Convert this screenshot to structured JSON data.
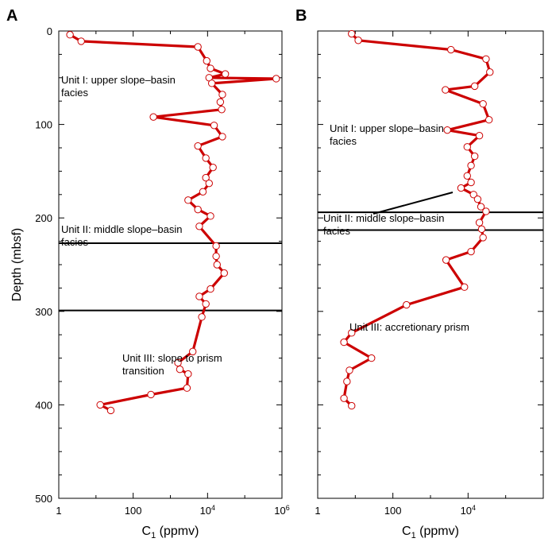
{
  "chart_data": [
    {
      "panel_label": "A",
      "type": "line",
      "xlabel_main": "C",
      "xlabel_sub": "1",
      "xlabel_unit": "(ppmv)",
      "ylabel": "Depth (mbsf)",
      "x_scale": "log",
      "xlim": [
        1,
        1000000
      ],
      "ylim": [
        0,
        500
      ],
      "y_inverted": true,
      "x_ticks": [
        {
          "value": 1,
          "label": "1",
          "sup": ""
        },
        {
          "value": 100,
          "label": "100",
          "sup": ""
        },
        {
          "value": 10000,
          "label": "10",
          "sup": "4"
        },
        {
          "value": 1000000,
          "label": "10",
          "sup": "6"
        }
      ],
      "y_ticks": [
        {
          "value": 0,
          "label": "0"
        },
        {
          "value": 100,
          "label": "100"
        },
        {
          "value": 200,
          "label": "200"
        },
        {
          "value": 300,
          "label": "300"
        },
        {
          "value": 400,
          "label": "400"
        },
        {
          "value": 500,
          "label": "500"
        }
      ],
      "series": [
        {
          "color": "#cc0000",
          "points": [
            {
              "x": 2,
              "y": 4
            },
            {
              "x": 4,
              "y": 11
            },
            {
              "x": 5500,
              "y": 17
            },
            {
              "x": 9500,
              "y": 32
            },
            {
              "x": 12000,
              "y": 40
            },
            {
              "x": 30000,
              "y": 46
            },
            {
              "x": 11000,
              "y": 50
            },
            {
              "x": 700000,
              "y": 51
            },
            {
              "x": 13000,
              "y": 56
            },
            {
              "x": 25000,
              "y": 68
            },
            {
              "x": 22000,
              "y": 76
            },
            {
              "x": 24000,
              "y": 84
            },
            {
              "x": 350,
              "y": 92
            },
            {
              "x": 15000,
              "y": 101
            },
            {
              "x": 25000,
              "y": 113
            },
            {
              "x": 5500,
              "y": 123
            },
            {
              "x": 9000,
              "y": 136
            },
            {
              "x": 14000,
              "y": 146
            },
            {
              "x": 9000,
              "y": 157
            },
            {
              "x": 11000,
              "y": 163
            },
            {
              "x": 7500,
              "y": 172
            },
            {
              "x": 3000,
              "y": 181
            },
            {
              "x": 5500,
              "y": 191
            },
            {
              "x": 12000,
              "y": 198
            },
            {
              "x": 6000,
              "y": 209
            },
            {
              "x": 17000,
              "y": 230
            },
            {
              "x": 17000,
              "y": 241
            },
            {
              "x": 18000,
              "y": 250
            },
            {
              "x": 28000,
              "y": 259
            },
            {
              "x": 12000,
              "y": 276
            },
            {
              "x": 6000,
              "y": 284
            },
            {
              "x": 9000,
              "y": 292
            },
            {
              "x": 7000,
              "y": 306
            },
            {
              "x": 4000,
              "y": 343
            },
            {
              "x": 1600,
              "y": 355
            },
            {
              "x": 1800,
              "y": 362
            },
            {
              "x": 3000,
              "y": 367
            },
            {
              "x": 2800,
              "y": 382
            },
            {
              "x": 300,
              "y": 389
            },
            {
              "x": 13,
              "y": 400
            },
            {
              "x": 25,
              "y": 406
            }
          ]
        }
      ],
      "boundaries": [
        {
          "depth": 227
        },
        {
          "depth": 299
        }
      ],
      "annotations": [
        {
          "text": [
            "Unit I: upper slope–basin",
            "facies"
          ],
          "x": 3,
          "y": 66
        },
        {
          "text": [
            "Unit II: middle slope–basin",
            "facies"
          ],
          "x": 3,
          "y": 254
        },
        {
          "text": [
            "Unit III: slope to prism",
            "transition"
          ],
          "x": 80,
          "y": 416
        }
      ]
    },
    {
      "panel_label": "B",
      "type": "line",
      "xlabel_main": "C",
      "xlabel_sub": "1",
      "xlabel_unit": "(ppmv)",
      "ylabel": "",
      "x_scale": "log",
      "xlim": [
        1,
        1000000
      ],
      "ylim": [
        0,
        500
      ],
      "y_inverted": true,
      "x_ticks": [
        {
          "value": 1,
          "label": "1",
          "sup": ""
        },
        {
          "value": 100,
          "label": "100",
          "sup": ""
        },
        {
          "value": 10000,
          "label": "10",
          "sup": "4"
        }
      ],
      "y_ticks": [],
      "series": [
        {
          "color": "#cc0000",
          "points": [
            {
              "x": 8,
              "y": 3
            },
            {
              "x": 12,
              "y": 10
            },
            {
              "x": 3500,
              "y": 20
            },
            {
              "x": 30000,
              "y": 30
            },
            {
              "x": 38000,
              "y": 44
            },
            {
              "x": 15000,
              "y": 59
            },
            {
              "x": 2500,
              "y": 63
            },
            {
              "x": 25000,
              "y": 78
            },
            {
              "x": 36000,
              "y": 95
            },
            {
              "x": 2800,
              "y": 106
            },
            {
              "x": 20000,
              "y": 112
            },
            {
              "x": 9500,
              "y": 124
            },
            {
              "x": 15000,
              "y": 134
            },
            {
              "x": 12000,
              "y": 144
            },
            {
              "x": 9500,
              "y": 155
            },
            {
              "x": 12000,
              "y": 162
            },
            {
              "x": 6500,
              "y": 168
            },
            {
              "x": 14000,
              "y": 175
            },
            {
              "x": 18000,
              "y": 180
            },
            {
              "x": 22000,
              "y": 188
            },
            {
              "x": 30000,
              "y": 193
            },
            {
              "x": 20000,
              "y": 205
            },
            {
              "x": 23000,
              "y": 212
            },
            {
              "x": 25000,
              "y": 221
            },
            {
              "x": 12000,
              "y": 236
            },
            {
              "x": 2600,
              "y": 245
            },
            {
              "x": 8000,
              "y": 274
            },
            {
              "x": 230,
              "y": 293
            },
            {
              "x": 8,
              "y": 323
            },
            {
              "x": 5,
              "y": 333
            },
            {
              "x": 27,
              "y": 350
            },
            {
              "x": 7,
              "y": 363
            },
            {
              "x": 6,
              "y": 375
            },
            {
              "x": 5,
              "y": 393
            },
            {
              "x": 8,
              "y": 401
            }
          ]
        }
      ],
      "boundaries": [
        {
          "depth": 194
        },
        {
          "depth": 213
        }
      ],
      "fault_marker": {
        "x1": 70,
        "y1": 230,
        "x2": 170,
        "y2": 203
      },
      "annotations": [
        {
          "text": [
            "Unit I: upper slope–basin",
            "facies"
          ],
          "x": 15,
          "y": 127
        },
        {
          "text": [
            "Unit II: middle slope–basin",
            "facies"
          ],
          "x": 7,
          "y": 240
        },
        {
          "text": [
            "Unit III: accretionary prism"
          ],
          "x": 40,
          "y": 377
        }
      ]
    }
  ]
}
